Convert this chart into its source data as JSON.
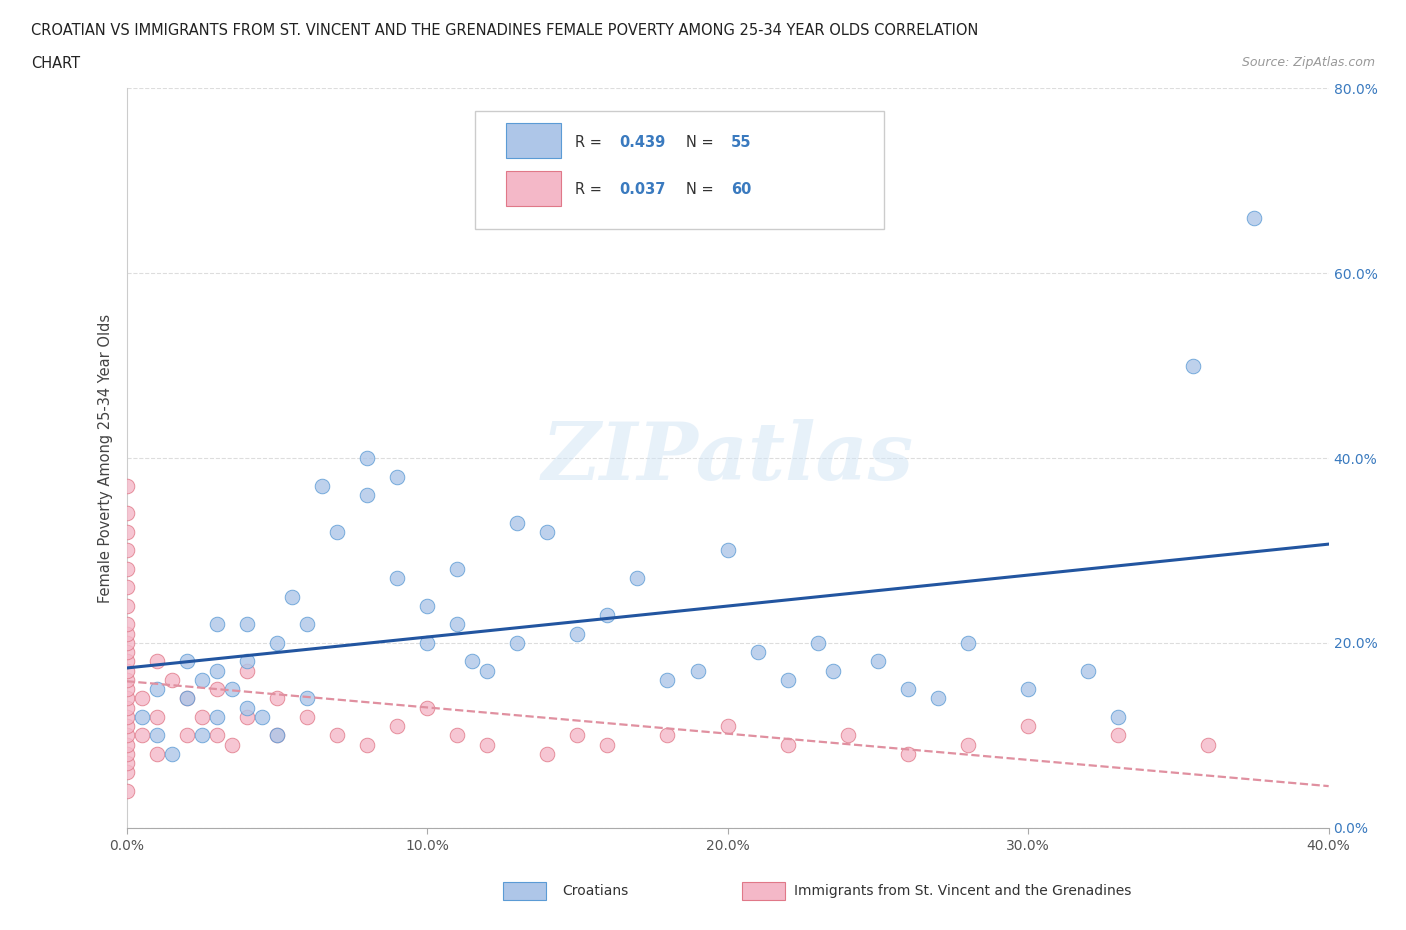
{
  "title_line1": "CROATIAN VS IMMIGRANTS FROM ST. VINCENT AND THE GRENADINES FEMALE POVERTY AMONG 25-34 YEAR OLDS CORRELATION",
  "title_line2": "CHART",
  "source_text": "Source: ZipAtlas.com",
  "ylabel": "Female Poverty Among 25-34 Year Olds",
  "xlim": [
    0.0,
    0.4
  ],
  "ylim": [
    0.0,
    0.8
  ],
  "xticks": [
    0.0,
    0.1,
    0.2,
    0.3,
    0.4
  ],
  "yticks": [
    0.0,
    0.2,
    0.4,
    0.6,
    0.8
  ],
  "croatian_color": "#aec6e8",
  "croatian_edge": "#5b9bd5",
  "svg_color": "#f4b8c8",
  "svg_edge": "#e07888",
  "trendline_blue": "#2255a0",
  "trendline_pink": "#e090a0",
  "watermark": "ZIPatlas",
  "R_croatian": 0.439,
  "N_croatian": 55,
  "R_svg": 0.037,
  "N_svg": 60,
  "croatian_x": [
    0.005,
    0.01,
    0.01,
    0.015,
    0.02,
    0.02,
    0.025,
    0.025,
    0.03,
    0.03,
    0.03,
    0.035,
    0.04,
    0.04,
    0.04,
    0.045,
    0.05,
    0.05,
    0.055,
    0.06,
    0.06,
    0.065,
    0.07,
    0.08,
    0.08,
    0.09,
    0.09,
    0.1,
    0.1,
    0.11,
    0.11,
    0.115,
    0.12,
    0.13,
    0.13,
    0.14,
    0.15,
    0.16,
    0.17,
    0.18,
    0.19,
    0.2,
    0.21,
    0.22,
    0.23,
    0.235,
    0.25,
    0.26,
    0.27,
    0.28,
    0.3,
    0.32,
    0.33,
    0.355,
    0.375
  ],
  "croatian_y": [
    0.12,
    0.1,
    0.15,
    0.08,
    0.14,
    0.18,
    0.1,
    0.16,
    0.12,
    0.17,
    0.22,
    0.15,
    0.13,
    0.18,
    0.22,
    0.12,
    0.1,
    0.2,
    0.25,
    0.14,
    0.22,
    0.37,
    0.32,
    0.4,
    0.36,
    0.27,
    0.38,
    0.2,
    0.24,
    0.22,
    0.28,
    0.18,
    0.17,
    0.33,
    0.2,
    0.32,
    0.21,
    0.23,
    0.27,
    0.16,
    0.17,
    0.3,
    0.19,
    0.16,
    0.2,
    0.17,
    0.18,
    0.15,
    0.14,
    0.2,
    0.15,
    0.17,
    0.12,
    0.5,
    0.66
  ],
  "svg_x": [
    0.0,
    0.0,
    0.0,
    0.0,
    0.0,
    0.0,
    0.0,
    0.0,
    0.0,
    0.0,
    0.0,
    0.0,
    0.0,
    0.0,
    0.0,
    0.0,
    0.0,
    0.0,
    0.0,
    0.0,
    0.0,
    0.0,
    0.0,
    0.0,
    0.0,
    0.005,
    0.005,
    0.01,
    0.01,
    0.01,
    0.015,
    0.02,
    0.02,
    0.025,
    0.03,
    0.03,
    0.035,
    0.04,
    0.04,
    0.05,
    0.05,
    0.06,
    0.07,
    0.08,
    0.09,
    0.1,
    0.11,
    0.12,
    0.14,
    0.15,
    0.16,
    0.18,
    0.2,
    0.22,
    0.24,
    0.26,
    0.28,
    0.3,
    0.33,
    0.36
  ],
  "svg_y": [
    0.04,
    0.06,
    0.07,
    0.08,
    0.09,
    0.1,
    0.11,
    0.12,
    0.13,
    0.14,
    0.15,
    0.16,
    0.17,
    0.18,
    0.19,
    0.2,
    0.21,
    0.22,
    0.24,
    0.26,
    0.28,
    0.3,
    0.32,
    0.34,
    0.37,
    0.1,
    0.14,
    0.08,
    0.12,
    0.18,
    0.16,
    0.1,
    0.14,
    0.12,
    0.1,
    0.15,
    0.09,
    0.12,
    0.17,
    0.1,
    0.14,
    0.12,
    0.1,
    0.09,
    0.11,
    0.13,
    0.1,
    0.09,
    0.08,
    0.1,
    0.09,
    0.1,
    0.11,
    0.09,
    0.1,
    0.08,
    0.09,
    0.11,
    0.1,
    0.09
  ]
}
